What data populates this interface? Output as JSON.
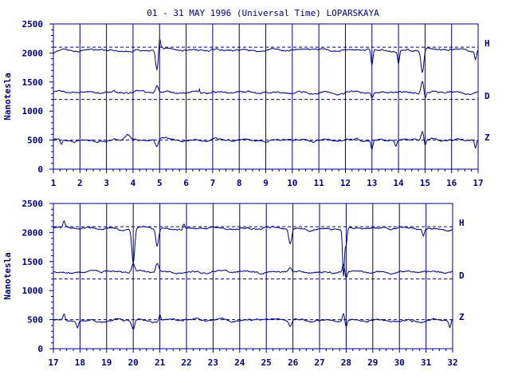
{
  "title": "01 - 31 MAY 1996 (Universal Time) LOPARSKAYA",
  "colors": {
    "ink": "#000080",
    "background": "#ffffff"
  },
  "chart_data": [
    {
      "type": "line",
      "panel": "top",
      "ylabel": "Nanotesla",
      "ylim": [
        0,
        2500
      ],
      "ytick_values": [
        0,
        500,
        1000,
        1500,
        2000,
        2500
      ],
      "ytick_labels": [
        "0",
        "500",
        "1000",
        "1500",
        "2000",
        "2500"
      ],
      "xlim": [
        1,
        17
      ],
      "xtick_values": [
        1,
        2,
        3,
        4,
        5,
        6,
        7,
        8,
        9,
        10,
        11,
        12,
        13,
        14,
        15,
        16,
        17
      ],
      "xtick_labels": [
        "1",
        "2",
        "3",
        "4",
        "5",
        "6",
        "7",
        "8",
        "9",
        "10",
        "11",
        "12",
        "13",
        "14",
        "15",
        "16",
        "17"
      ],
      "grid": "vertical lines at each day",
      "baselines": [
        2100,
        1200,
        500
      ],
      "series": [
        {
          "name": "H",
          "base": 2050,
          "disturbances": [
            [
              1.0,
              -60,
              0.4
            ],
            [
              4.9,
              -350,
              0.15
            ],
            [
              5.0,
              200,
              0.1
            ],
            [
              13.0,
              -250,
              0.1
            ],
            [
              14.0,
              -220,
              0.1
            ],
            [
              14.9,
              -400,
              0.15
            ],
            [
              16.9,
              -150,
              0.1
            ]
          ]
        },
        {
          "name": "D",
          "base": 1320,
          "disturbances": [
            [
              4.9,
              120,
              0.15
            ],
            [
              6.5,
              60,
              0.05
            ],
            [
              13.0,
              -80,
              0.1
            ],
            [
              14.9,
              200,
              0.15
            ],
            [
              15.0,
              -100,
              0.1
            ]
          ]
        },
        {
          "name": "Z",
          "base": 500,
          "disturbances": [
            [
              1.3,
              -80,
              0.1
            ],
            [
              3.8,
              100,
              0.3
            ],
            [
              4.9,
              -120,
              0.15
            ],
            [
              13.0,
              -150,
              0.1
            ],
            [
              13.9,
              -100,
              0.1
            ],
            [
              14.9,
              160,
              0.15
            ],
            [
              15.0,
              -100,
              0.1
            ],
            [
              16.9,
              -150,
              0.1
            ]
          ]
        }
      ]
    },
    {
      "type": "line",
      "panel": "bottom",
      "ylabel": "Nanotesla",
      "ylim": [
        0,
        2500
      ],
      "ytick_values": [
        0,
        500,
        1000,
        1500,
        2000,
        2500
      ],
      "ytick_labels": [
        "0",
        "500",
        "1000",
        "1500",
        "2000",
        "2500"
      ],
      "xlim": [
        17,
        32
      ],
      "xtick_values": [
        17,
        18,
        19,
        20,
        21,
        22,
        23,
        24,
        25,
        26,
        27,
        28,
        29,
        30,
        31,
        32
      ],
      "xtick_labels": [
        "17",
        "18",
        "19",
        "20",
        "21",
        "22",
        "23",
        "24",
        "25",
        "26",
        "27",
        "28",
        "29",
        "30",
        "31",
        "32"
      ],
      "grid": "vertical lines at each day",
      "baselines": [
        2100,
        1200,
        500
      ],
      "series": [
        {
          "name": "H",
          "base": 2070,
          "disturbances": [
            [
              17.4,
              100,
              0.1
            ],
            [
              20.0,
              -600,
              0.15
            ],
            [
              20.9,
              -300,
              0.15
            ],
            [
              21.9,
              100,
              0.1
            ],
            [
              25.9,
              -250,
              0.15
            ],
            [
              27.9,
              -800,
              0.1
            ],
            [
              28.0,
              -300,
              0.1
            ],
            [
              30.9,
              -120,
              0.1
            ]
          ]
        },
        {
          "name": "D",
          "base": 1320,
          "disturbances": [
            [
              20.0,
              150,
              0.15
            ],
            [
              20.9,
              150,
              0.15
            ],
            [
              25.9,
              60,
              0.15
            ],
            [
              27.9,
              120,
              0.1
            ],
            [
              28.0,
              -120,
              0.1
            ]
          ]
        },
        {
          "name": "Z",
          "base": 490,
          "disturbances": [
            [
              17.4,
              100,
              0.1
            ],
            [
              17.9,
              -100,
              0.1
            ],
            [
              20.0,
              -150,
              0.15
            ],
            [
              21.0,
              100,
              0.1
            ],
            [
              25.9,
              -100,
              0.15
            ],
            [
              27.9,
              130,
              0.1
            ],
            [
              28.0,
              -100,
              0.1
            ],
            [
              31.9,
              -120,
              0.1
            ]
          ]
        }
      ]
    }
  ]
}
